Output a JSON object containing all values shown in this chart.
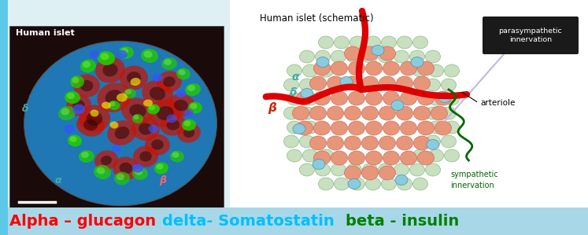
{
  "background_color": "#dff0f5",
  "fig_width": 7.47,
  "fig_height": 2.99,
  "left_photo_label": "Human islet",
  "right_title": "Human islet (schematic)",
  "bottom_text_parts": [
    {
      "text": "Alpha – glucagon ",
      "color": "#ff0000"
    },
    {
      "text": "delta- Somatostatin  ",
      "color": "#00bfff"
    },
    {
      "text": "beta - insulin",
      "color": "#008000"
    }
  ],
  "bottom_bg": "#a8d8e8",
  "left_strip_color": "#5bc8e8",
  "left_photo_bg": "#1a0a0a",
  "right_bg": "#ffffff",
  "arteriole_color": "#dd0000",
  "sympathetic_color": "#006600",
  "parasympathetic_color": "#d0c8e8",
  "annotation_box_color": "#1a1a1a",
  "annotation_text_color": "#ffffff",
  "beta_cell_color": "#e8967a",
  "beta_cell_edge": "#c87060",
  "alpha_cell_color": "#c8dfc0",
  "alpha_cell_edge": "#90b888",
  "delta_cell_color": "#88ccdd",
  "delta_cell_edge": "#5090aa",
  "alpha_label_color": "#44aaaa",
  "delta_label_color": "#44aaaa",
  "beta_label_color": "#cc2200"
}
